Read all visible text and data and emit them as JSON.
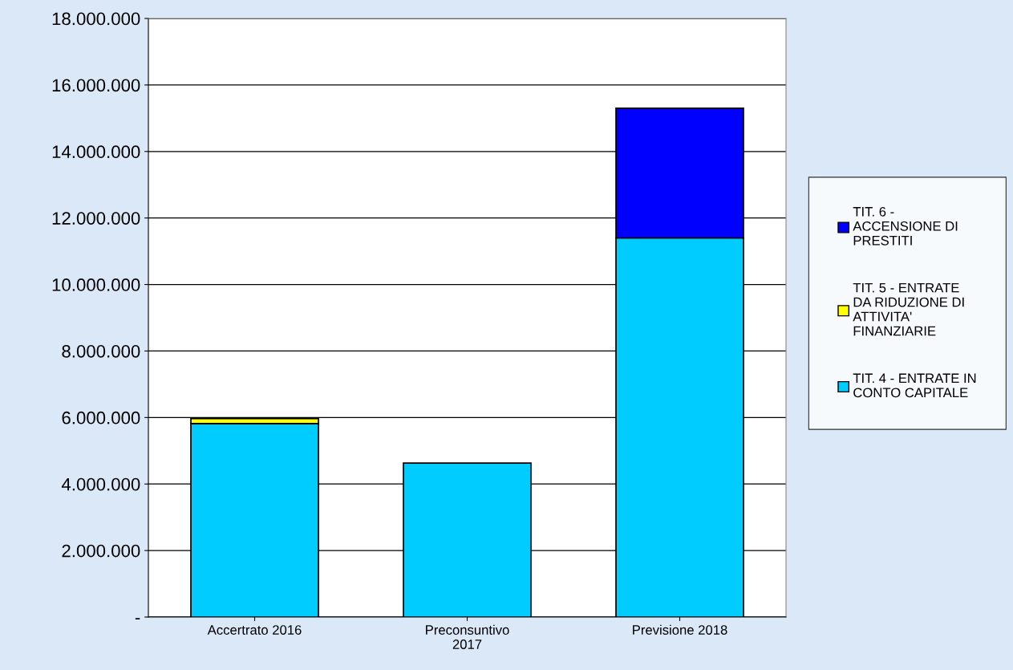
{
  "chart_data": {
    "type": "bar",
    "stacked": true,
    "categories": [
      "Accertrato 2016",
      "Preconsuntivo\n2017",
      "Previsione 2018"
    ],
    "series": [
      {
        "name": "TIT. 4 - ENTRATE IN\nCONTO CAPITALE",
        "color": "#00ccff",
        "values": [
          5820000,
          4630000,
          11400000
        ]
      },
      {
        "name": "TIT. 5 - ENTRATE\nDA RIDUZIONE DI\nATTIVITA'\nFINANZIARIE",
        "color": "#ffff00",
        "values": [
          150000,
          null,
          null
        ]
      },
      {
        "name": "TIT. 6 -\nACCENSIONE DI\nPRESTITI",
        "color": "#0000ff",
        "values": [
          null,
          null,
          3900000
        ]
      }
    ],
    "ylim": [
      0,
      18000000
    ],
    "yticks": [
      {
        "value": 0,
        "label": "-"
      },
      {
        "value": 2000000,
        "label": "2.000.000"
      },
      {
        "value": 4000000,
        "label": "4.000.000"
      },
      {
        "value": 6000000,
        "label": "6.000.000"
      },
      {
        "value": 8000000,
        "label": "8.000.000"
      },
      {
        "value": 10000000,
        "label": "10.000.000"
      },
      {
        "value": 12000000,
        "label": "12.000.000"
      },
      {
        "value": 14000000,
        "label": "14.000.000"
      },
      {
        "value": 16000000,
        "label": "16.000.000"
      },
      {
        "value": 18000000,
        "label": "18.000.000"
      }
    ],
    "grid": "y",
    "legend": "right"
  }
}
